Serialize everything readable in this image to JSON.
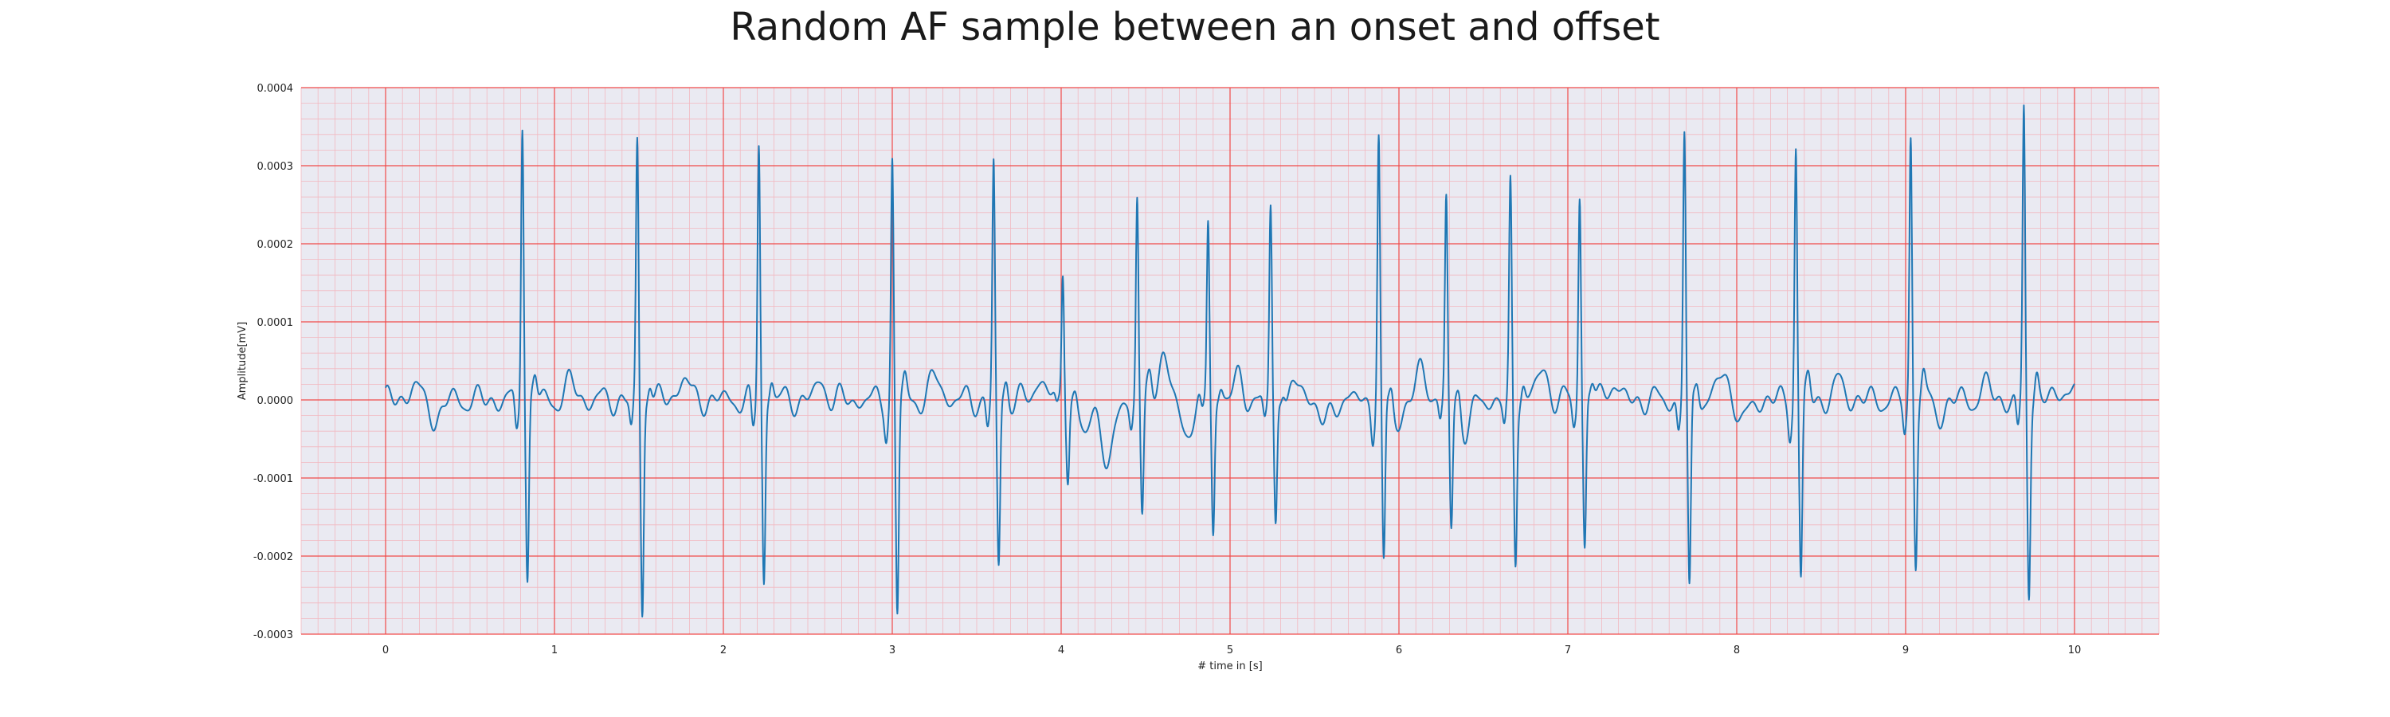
{
  "chart_data": {
    "type": "line",
    "title": "Random AF sample between an onset and offset",
    "xlabel": "# time in [s]",
    "ylabel": "Amplitude[mV]",
    "xlim": [
      -0.5,
      10.5
    ],
    "ylim": [
      -0.0003,
      0.0004
    ],
    "x_ticks": [
      0,
      1,
      2,
      3,
      4,
      5,
      6,
      7,
      8,
      9,
      10
    ],
    "x_tick_labels": [
      "0",
      "1",
      "2",
      "3",
      "4",
      "5",
      "6",
      "7",
      "8",
      "9",
      "10"
    ],
    "y_ticks": [
      -0.0003,
      -0.0002,
      -0.0001,
      0.0,
      0.0001,
      0.0002,
      0.0003,
      0.0004
    ],
    "y_tick_labels": [
      "-0.0003",
      "-0.0002",
      "-0.0001",
      "0.0000",
      "0.0001",
      "0.0002",
      "0.0003",
      "0.0004"
    ],
    "grid": {
      "major": true,
      "minor": true
    },
    "colors": {
      "background": "#EAEAF2",
      "major_grid": "#F04A4A",
      "minor_grid": "#F2B8C0",
      "line": "#1F77B4"
    },
    "series": [
      {
        "x_start": 0,
        "x_end": 10,
        "r_peaks": [
          {
            "t": 0.81,
            "r": 0.000365,
            "s": -0.00023
          },
          {
            "t": 1.49,
            "r": 0.00033,
            "s": -0.000272
          },
          {
            "t": 2.21,
            "r": 0.00033,
            "s": -0.000235
          },
          {
            "t": 3.0,
            "r": 0.000305,
            "s": -0.000275
          },
          {
            "t": 3.6,
            "r": 0.0003,
            "s": -0.000215
          },
          {
            "t": 4.01,
            "r": 0.00017,
            "s": -9.2e-05
          },
          {
            "t": 4.45,
            "r": 0.00026,
            "s": -0.00015
          },
          {
            "t": 4.87,
            "r": 0.00023,
            "s": -0.00017
          },
          {
            "t": 5.24,
            "r": 0.00025,
            "s": -0.00016
          },
          {
            "t": 5.88,
            "r": 0.000335,
            "s": -0.00022
          },
          {
            "t": 6.28,
            "r": 0.000255,
            "s": -0.000162
          },
          {
            "t": 6.66,
            "r": 0.00027,
            "s": -0.000203
          },
          {
            "t": 7.07,
            "r": 0.00027,
            "s": -0.00019
          },
          {
            "t": 7.69,
            "r": 0.000345,
            "s": -0.000253
          },
          {
            "t": 8.35,
            "r": 0.00033,
            "s": -0.000232
          },
          {
            "t": 9.03,
            "r": 0.000335,
            "s": -0.000202
          },
          {
            "t": 9.7,
            "r": 0.00037,
            "s": -0.000242
          }
        ],
        "baseline_waves": [
          {
            "t": 0.16,
            "a": 1.8e-05
          },
          {
            "t": 0.3,
            "a": -2.5e-05
          },
          {
            "t": 1.1,
            "a": 2.2e-05
          },
          {
            "t": 1.76,
            "a": 3e-05
          },
          {
            "t": 2.58,
            "a": 2.2e-05
          },
          {
            "t": 3.26,
            "a": 3e-05
          },
          {
            "t": 3.88,
            "a": 3e-05
          },
          {
            "t": 4.14,
            "a": -5e-05
          },
          {
            "t": 4.28,
            "a": -9.5e-05
          },
          {
            "t": 4.6,
            "a": 6e-05
          },
          {
            "t": 4.74,
            "a": -4.5e-05
          },
          {
            "t": 5.05,
            "a": 2.5e-05
          },
          {
            "t": 5.42,
            "a": 2e-05
          },
          {
            "t": 5.56,
            "a": -3.5e-05
          },
          {
            "t": 5.99,
            "a": -3e-05
          },
          {
            "t": 6.14,
            "a": 4e-05
          },
          {
            "t": 6.4,
            "a": -4e-05
          },
          {
            "t": 6.85,
            "a": 4e-05
          },
          {
            "t": 7.26,
            "a": 2.5e-05
          },
          {
            "t": 7.92,
            "a": 3.5e-05
          },
          {
            "t": 8.04,
            "a": -3e-05
          },
          {
            "t": 8.61,
            "a": 2.2e-05
          },
          {
            "t": 9.2,
            "a": -2e-05
          },
          {
            "t": 9.48,
            "a": 1.8e-05
          },
          {
            "t": 9.95,
            "a": 2e-05
          }
        ]
      }
    ]
  }
}
